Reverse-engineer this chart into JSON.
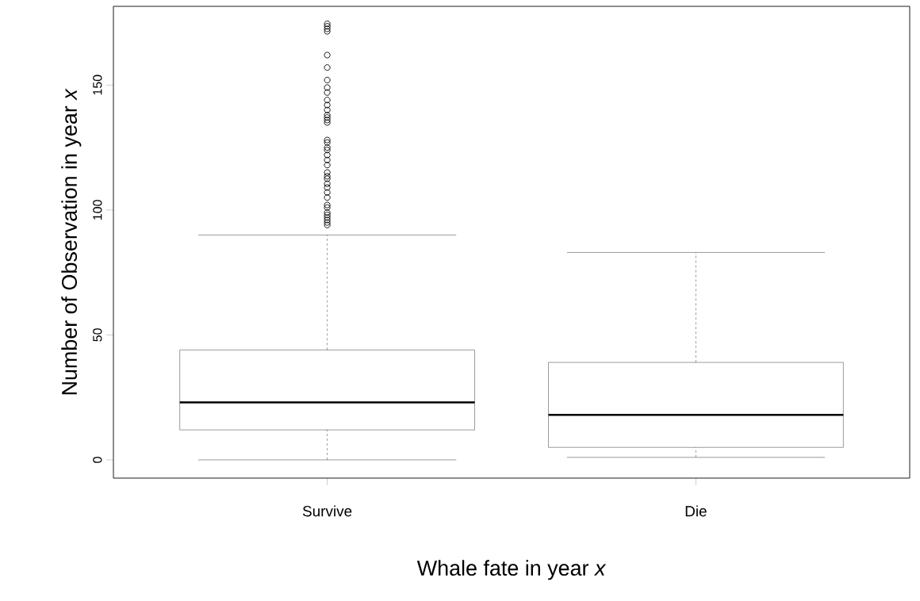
{
  "chart_data": {
    "type": "box",
    "xlabel": "Whale fate in year *x*",
    "ylabel": "Number of Observation in year *x*",
    "categories": [
      "Survive",
      "Die"
    ],
    "ylim": [
      -7.3,
      181.5
    ],
    "yticks": [
      0,
      50,
      100,
      150
    ],
    "grid": false,
    "color": "#000000",
    "boxes": [
      {
        "low": 0,
        "q1": 12,
        "median": 23,
        "q3": 44,
        "high": 90,
        "outliers": [
          174.5,
          173.5,
          172.5,
          171.5,
          162,
          157,
          152,
          149,
          147,
          144,
          142,
          140,
          138,
          137,
          136,
          135,
          128,
          127,
          125,
          124,
          122,
          120,
          118,
          115,
          113.5,
          112.5,
          110.5,
          109,
          107,
          105,
          102,
          101,
          99,
          98,
          97,
          96,
          95,
          94
        ]
      },
      {
        "low": 1,
        "q1": 5,
        "median": 18,
        "q3": 39,
        "high": 83
      }
    ]
  }
}
